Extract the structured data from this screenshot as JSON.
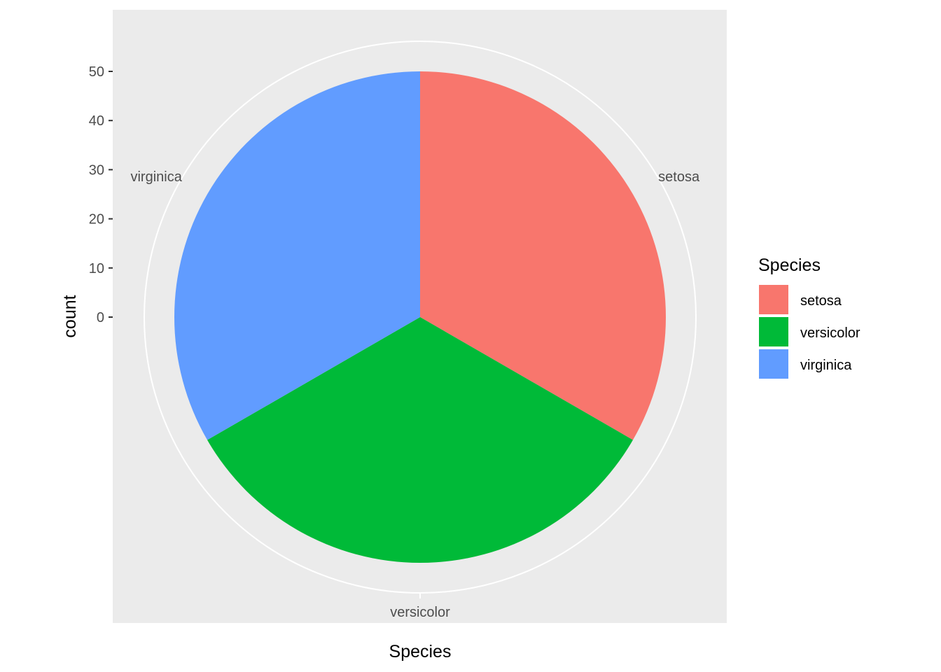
{
  "chart_data": {
    "type": "pie",
    "categories": [
      "setosa",
      "versicolor",
      "virginica"
    ],
    "values": [
      50,
      50,
      50
    ],
    "colors": [
      "#F8766D",
      "#00BA38",
      "#619CFF"
    ],
    "xlabel": "Species",
    "ylabel": "count",
    "y_ticks": [
      "0",
      "10",
      "20",
      "30",
      "40",
      "50"
    ],
    "y_tick_values": [
      0,
      10,
      20,
      30,
      40,
      50
    ],
    "legend_title": "Species",
    "legend_position": "right",
    "panel_background": "#EBEBEB",
    "grid": true,
    "grid_color": "#FFFFFF"
  }
}
